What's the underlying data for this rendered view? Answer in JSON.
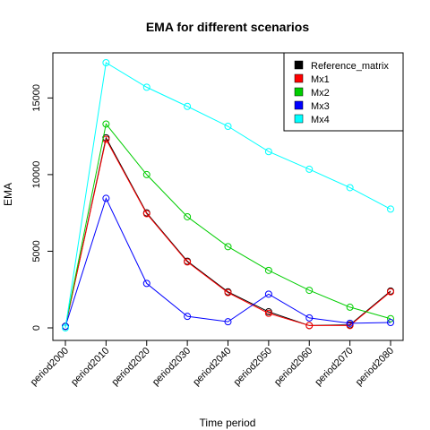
{
  "chart_data": {
    "type": "line",
    "title": "EMA for different scenarios",
    "xlabel": "Time period",
    "ylabel": "EMA",
    "categories": [
      "period2000",
      "period2010",
      "period2020",
      "period2030",
      "period2040",
      "period2050",
      "period2060",
      "period2070",
      "period2080"
    ],
    "yticks": [
      0,
      5000,
      10000,
      15000
    ],
    "ylim": [
      0,
      17300
    ],
    "legend_position": "top-right",
    "series": [
      {
        "name": "Reference_matrix",
        "color": "#000000",
        "values": [
          100,
          12400,
          7500,
          4350,
          2350,
          1050,
          150,
          200,
          2400
        ]
      },
      {
        "name": "Mx1",
        "color": "#ff0000",
        "values": [
          100,
          12300,
          7450,
          4300,
          2300,
          950,
          150,
          150,
          2350
        ]
      },
      {
        "name": "Mx2",
        "color": "#00cd00",
        "values": [
          100,
          13300,
          10000,
          7250,
          5300,
          3750,
          2450,
          1350,
          600
        ]
      },
      {
        "name": "Mx3",
        "color": "#0000ff",
        "values": [
          100,
          8450,
          2900,
          750,
          400,
          2200,
          650,
          300,
          350
        ]
      },
      {
        "name": "Mx4",
        "color": "#00ffff",
        "values": [
          0,
          17300,
          15700,
          14450,
          13150,
          11500,
          10350,
          9150,
          7750
        ]
      }
    ]
  }
}
